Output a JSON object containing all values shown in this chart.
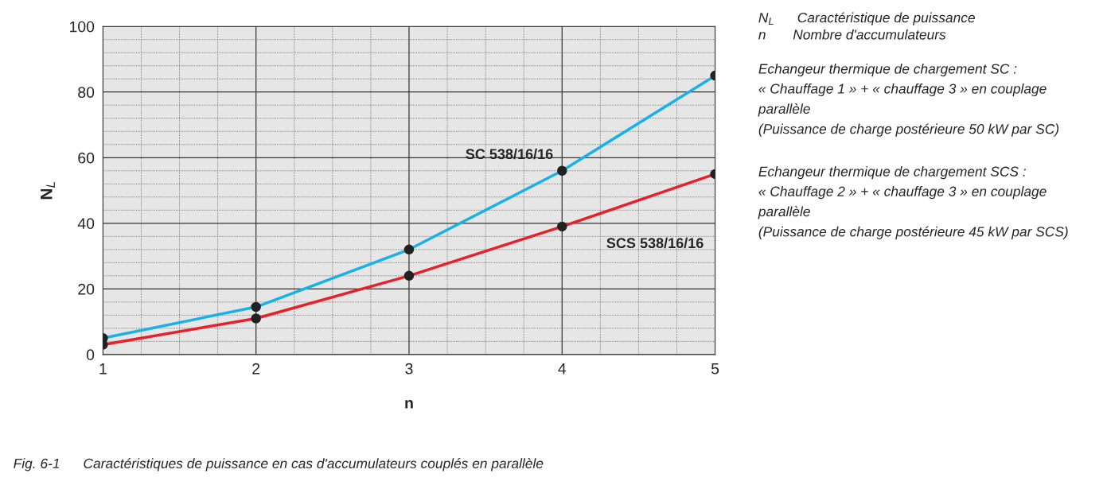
{
  "chart_data": {
    "type": "line",
    "xlabel": "n",
    "ylabel": "N$_{L}$",
    "x": [
      1,
      2,
      3,
      4,
      5
    ],
    "series": [
      {
        "name": "SC 538/16/16",
        "color": "#1ab0e8",
        "values": [
          5,
          14.5,
          32,
          56,
          85
        ]
      },
      {
        "name": "SCS 538/16/16",
        "color": "#e8202a",
        "values": [
          3,
          11,
          24,
          39,
          55
        ]
      }
    ],
    "xlim": [
      1,
      5
    ],
    "xticks": [
      1,
      2,
      3,
      4,
      5
    ],
    "ylim": [
      0,
      100
    ],
    "yticks": [
      0,
      20,
      40,
      60,
      80,
      100
    ],
    "grid": true,
    "marker": "circle",
    "line_style": "solid",
    "annotations": [
      "N$_{L}$      Caractéristique de puissance",
      "n       Nombre d'accumulateurs",
      "Echangeur thermique de chargement SC :\n« Chauffage 1 » + « chauffage 3 » en couplage\nparallèle\n(Puissance de charge postérieure 50 kW par SC)",
      "Echangeur thermique de chargement SCS :\n« Chauffage 2 » + « chauffage 3 » en couplage\nparallèle\n(Puissance de charge postérieure 45 kW par SCS)",
      "Fig. 6-1      Caractéristiques de puissance en cas d'accumulateurs couplés en parallèle"
    ]
  }
}
